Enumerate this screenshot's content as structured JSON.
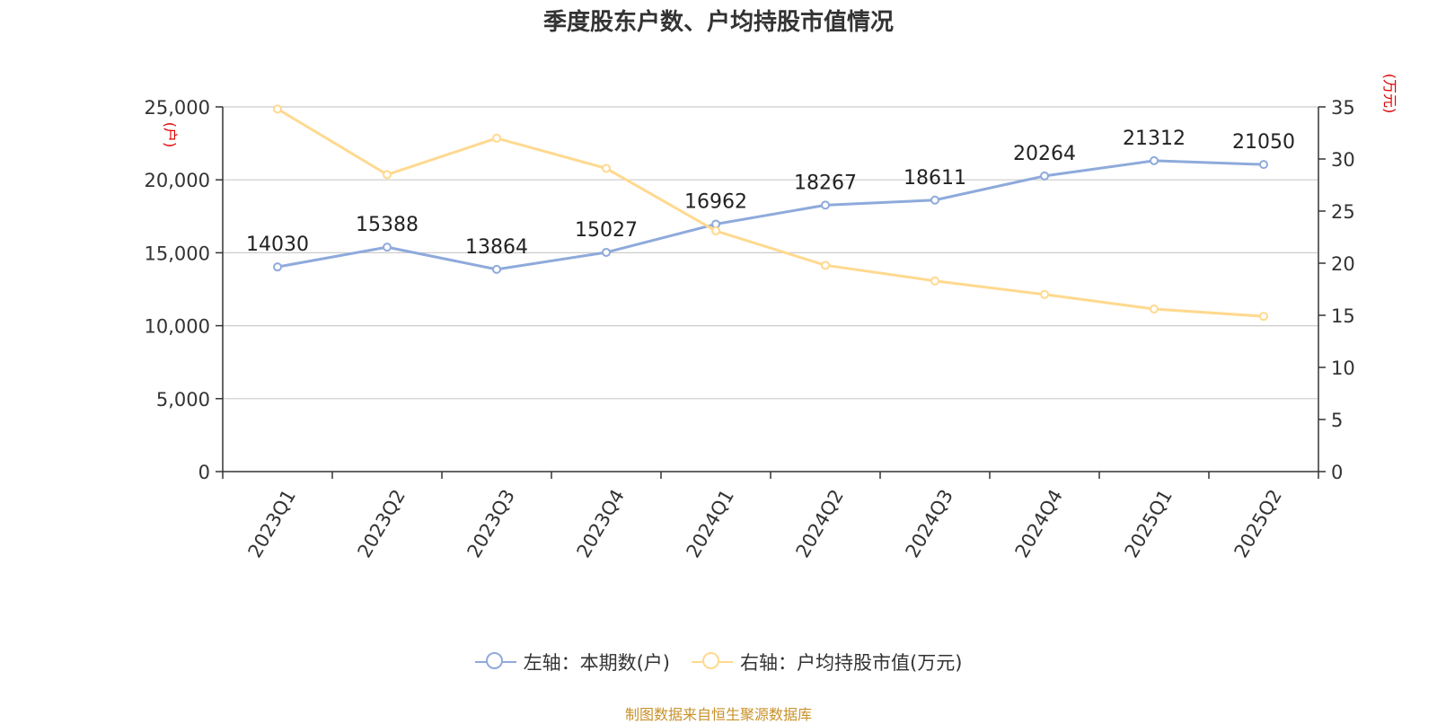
{
  "title": "季度股东户数、户均持股市值情况",
  "source": "制图数据来自恒生聚源数据库",
  "left_axis_unit": "(户)",
  "right_axis_unit": "(万元)",
  "legend": [
    {
      "label": "左轴：本期数(户)",
      "color": "#8eaadb"
    },
    {
      "label": "右轴：户均持股市值(万元)",
      "color": "#ffd98f"
    }
  ],
  "chart_data": {
    "type": "line",
    "title": "季度股东户数、户均持股市值情况",
    "categories": [
      "2023Q1",
      "2023Q2",
      "2023Q3",
      "2023Q4",
      "2024Q1",
      "2024Q2",
      "2024Q3",
      "2024Q4",
      "2025Q1",
      "2025Q2"
    ],
    "series": [
      {
        "name": "左轴：本期数(户)",
        "axis": "left",
        "color": "#8eaadb",
        "values": [
          14030,
          15388,
          13864,
          15027,
          16962,
          18267,
          18611,
          20264,
          21312,
          21050
        ],
        "labels_shown": true
      },
      {
        "name": "右轴：户均持股市值(万元)",
        "axis": "right",
        "color": "#ffd98f",
        "values": [
          34.8,
          28.5,
          32.0,
          29.1,
          23.1,
          19.8,
          18.3,
          17.0,
          15.6,
          14.9
        ],
        "labels_shown": false
      }
    ],
    "left_axis": {
      "label": "(户)",
      "ylim": [
        0,
        25000
      ],
      "ticks": [
        "0",
        "5,000",
        "10,000",
        "15,000",
        "20,000",
        "25,000"
      ],
      "tick_values": [
        0,
        5000,
        10000,
        15000,
        20000,
        25000
      ]
    },
    "right_axis": {
      "label": "(万元)",
      "ylim": [
        0,
        35
      ],
      "ticks": [
        "0",
        "5",
        "10",
        "15",
        "20",
        "25",
        "30",
        "35"
      ],
      "tick_values": [
        0,
        5,
        10,
        15,
        20,
        25,
        30,
        35
      ]
    },
    "grid": true,
    "legend_position": "bottom"
  }
}
